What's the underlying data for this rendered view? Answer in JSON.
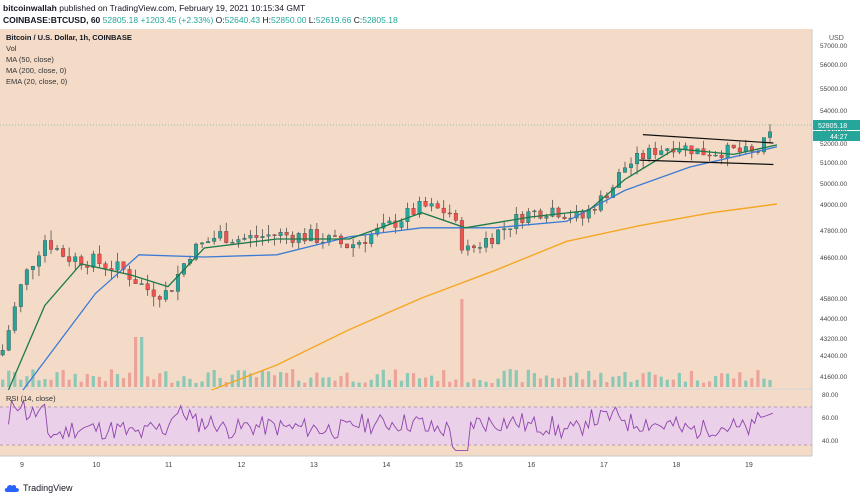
{
  "header": {
    "publisher": "bitcoinwallah",
    "published_text": "published on TradingView.com, February 19, 2021 10:15:34 GMT",
    "symbol": "COINBASE:BTCUSD, 60",
    "last_price": "52805.18",
    "change": "+1203.45 (+2.33%)",
    "open_label": "O:",
    "open_value": "52640.43",
    "high_label": "H:",
    "high_value": "52850.00",
    "low_label": "L:",
    "low_value": "52619.66",
    "close_label": "C:",
    "close_value": "52805.18"
  },
  "legend": {
    "title": "Bitcoin / U.S. Dollar, 1h, COINBASE",
    "vol": "Vol",
    "ma50": "MA (50, close)",
    "ma200": "MA (200, close, 0)",
    "ema20": "EMA (20, close, 0)",
    "rsi": "RSI (14, close)"
  },
  "axis": {
    "currency": "USD",
    "price_label": "52805.18",
    "countdown": "44:27",
    "y_ticks": [
      "57000.00",
      "56000.00",
      "55000.00",
      "54000.00",
      "53000.00",
      "52000.00",
      "51000.00",
      "50000.00",
      "49000.00",
      "47800.00",
      "46600.00",
      "45800.00",
      "44000.00",
      "43200.00",
      "42400.00",
      "41600.00"
    ],
    "rsi_ticks": [
      "80.00",
      "60.00",
      "40.00"
    ],
    "x_ticks": [
      "9",
      "10",
      "11",
      "12",
      "13",
      "14",
      "15",
      "16",
      "17",
      "18",
      "19"
    ]
  },
  "footer": {
    "brand": "TradingView"
  },
  "colors": {
    "background": "#f4dbc7",
    "rsi_band": "#ead0e8",
    "candle_up": "#26a69a",
    "candle_down": "#ef5350",
    "wick": "#3a3a3a",
    "ma50": "#3a7bd5",
    "ma200": "#f5a623",
    "ema20": "#1b7a4a",
    "rsi_line": "#8e44ad",
    "price_tag": "#26a69a"
  },
  "chart_data": {
    "type": "candlestick",
    "title": "Bitcoin / U.S. Dollar, 1h, COINBASE",
    "ylabel": "USD",
    "ylim": [
      41000,
      57400
    ],
    "x_categories": [
      "9",
      "10",
      "11",
      "12",
      "13",
      "14",
      "15",
      "16",
      "17",
      "18",
      "19"
    ],
    "price_path_approx": [
      {
        "day": 8.7,
        "close": 42400
      },
      {
        "day": 9.0,
        "close": 45600
      },
      {
        "day": 9.3,
        "close": 47400
      },
      {
        "day": 9.6,
        "close": 46600
      },
      {
        "day": 10.0,
        "close": 46400
      },
      {
        "day": 10.4,
        "close": 46000
      },
      {
        "day": 10.7,
        "close": 45200
      },
      {
        "day": 11.0,
        "close": 45000
      },
      {
        "day": 11.3,
        "close": 46800
      },
      {
        "day": 11.7,
        "close": 47600
      },
      {
        "day": 12.0,
        "close": 47400
      },
      {
        "day": 12.5,
        "close": 47600
      },
      {
        "day": 13.0,
        "close": 47500
      },
      {
        "day": 13.5,
        "close": 47100
      },
      {
        "day": 14.0,
        "close": 47900
      },
      {
        "day": 14.5,
        "close": 48900
      },
      {
        "day": 14.9,
        "close": 48600
      },
      {
        "day": 15.1,
        "close": 46800
      },
      {
        "day": 15.5,
        "close": 47600
      },
      {
        "day": 15.9,
        "close": 48500
      },
      {
        "day": 16.3,
        "close": 48800
      },
      {
        "day": 16.7,
        "close": 48300
      },
      {
        "day": 17.0,
        "close": 49400
      },
      {
        "day": 17.3,
        "close": 50800
      },
      {
        "day": 17.7,
        "close": 51600
      },
      {
        "day": 18.0,
        "close": 51900
      },
      {
        "day": 18.4,
        "close": 51500
      },
      {
        "day": 18.8,
        "close": 51600
      },
      {
        "day": 19.1,
        "close": 51400
      },
      {
        "day": 19.35,
        "close": 52805.18
      }
    ],
    "ma50_approx": [
      {
        "day": 9.0,
        "close": 41000
      },
      {
        "day": 10.0,
        "close": 45000
      },
      {
        "day": 10.6,
        "close": 46700
      },
      {
        "day": 11.5,
        "close": 46600
      },
      {
        "day": 12.5,
        "close": 46700
      },
      {
        "day": 13.5,
        "close": 47500
      },
      {
        "day": 14.5,
        "close": 47900
      },
      {
        "day": 15.5,
        "close": 47900
      },
      {
        "day": 16.5,
        "close": 48200
      },
      {
        "day": 17.3,
        "close": 49800
      },
      {
        "day": 18.2,
        "close": 50800
      },
      {
        "day": 19.4,
        "close": 51800
      }
    ],
    "ma200_approx": [
      {
        "day": 11.6,
        "close": 41000
      },
      {
        "day": 12.5,
        "close": 42000
      },
      {
        "day": 13.5,
        "close": 43500
      },
      {
        "day": 14.5,
        "close": 44800
      },
      {
        "day": 15.5,
        "close": 46000
      },
      {
        "day": 16.5,
        "close": 47300
      },
      {
        "day": 17.5,
        "close": 48000
      },
      {
        "day": 18.5,
        "close": 48600
      },
      {
        "day": 19.4,
        "close": 49000
      }
    ],
    "ema20_approx": [
      {
        "day": 8.8,
        "close": 41000
      },
      {
        "day": 9.3,
        "close": 44500
      },
      {
        "day": 9.8,
        "close": 46300
      },
      {
        "day": 10.5,
        "close": 45800
      },
      {
        "day": 11.0,
        "close": 45300
      },
      {
        "day": 11.5,
        "close": 47000
      },
      {
        "day": 12.5,
        "close": 47400
      },
      {
        "day": 13.5,
        "close": 47400
      },
      {
        "day": 14.5,
        "close": 48600
      },
      {
        "day": 15.1,
        "close": 47900
      },
      {
        "day": 16.0,
        "close": 48400
      },
      {
        "day": 16.8,
        "close": 48700
      },
      {
        "day": 17.3,
        "close": 50300
      },
      {
        "day": 18.0,
        "close": 51700
      },
      {
        "day": 18.8,
        "close": 51400
      },
      {
        "day": 19.4,
        "close": 51900
      }
    ],
    "channel_upper": [
      {
        "day": 17.55,
        "close": 52600
      },
      {
        "day": 19.35,
        "close": 52000
      }
    ],
    "channel_lower": [
      {
        "day": 17.5,
        "close": 51100
      },
      {
        "day": 19.35,
        "close": 50900
      }
    ],
    "rsi_ylim": [
      25,
      90
    ],
    "rsi_levels": [
      70,
      30
    ]
  }
}
